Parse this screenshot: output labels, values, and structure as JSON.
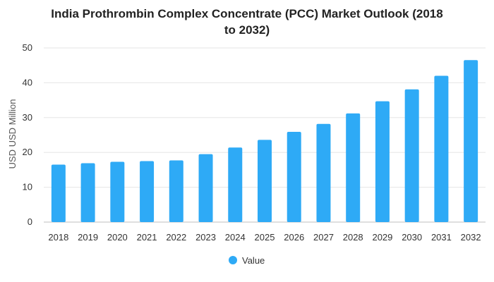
{
  "title_lines": [
    "India Prothrombin Complex Concentrate (PCC) Market Outlook (2018",
    "to 2032)"
  ],
  "chart_data": {
    "type": "bar",
    "title": "India Prothrombin Complex Concentrate (PCC) Market Outlook (2018 to 2032)",
    "xlabel": "",
    "ylabel": "USD USD Million",
    "ylim": [
      0,
      50
    ],
    "yticks": [
      0,
      10,
      20,
      30,
      40,
      50
    ],
    "grid": true,
    "legend_position": "bottom",
    "categories": [
      "2018",
      "2019",
      "2020",
      "2021",
      "2022",
      "2023",
      "2024",
      "2025",
      "2026",
      "2027",
      "2028",
      "2029",
      "2030",
      "2031",
      "2032"
    ],
    "series": [
      {
        "name": "Value",
        "color": "#2eaaf6",
        "values": [
          16.5,
          16.9,
          17.3,
          17.5,
          17.7,
          19.5,
          21.4,
          23.6,
          25.9,
          28.2,
          31.2,
          34.7,
          38.1,
          42.0,
          46.5
        ]
      }
    ]
  }
}
